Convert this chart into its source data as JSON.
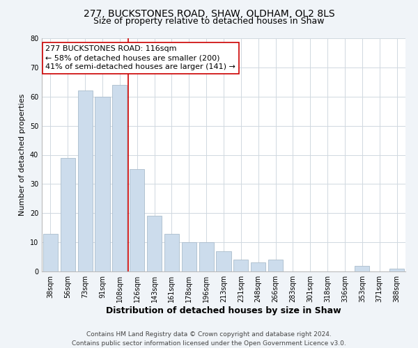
{
  "title": "277, BUCKSTONES ROAD, SHAW, OLDHAM, OL2 8LS",
  "subtitle": "Size of property relative to detached houses in Shaw",
  "xlabel": "Distribution of detached houses by size in Shaw",
  "ylabel": "Number of detached properties",
  "categories": [
    "38sqm",
    "56sqm",
    "73sqm",
    "91sqm",
    "108sqm",
    "126sqm",
    "143sqm",
    "161sqm",
    "178sqm",
    "196sqm",
    "213sqm",
    "231sqm",
    "248sqm",
    "266sqm",
    "283sqm",
    "301sqm",
    "318sqm",
    "336sqm",
    "353sqm",
    "371sqm",
    "388sqm"
  ],
  "values": [
    13,
    39,
    62,
    60,
    64,
    35,
    19,
    13,
    10,
    10,
    7,
    4,
    3,
    4,
    0,
    0,
    0,
    0,
    2,
    0,
    1
  ],
  "bar_color": "#ccdcec",
  "bar_edgecolor": "#aabccc",
  "vline_color": "#cc0000",
  "vline_x": 4.5,
  "annotation_line1": "277 BUCKSTONES ROAD: 116sqm",
  "annotation_line2": "← 58% of detached houses are smaller (200)",
  "annotation_line3": "41% of semi-detached houses are larger (141) →",
  "annotation_box_facecolor": "#ffffff",
  "annotation_box_edgecolor": "#cc0000",
  "ylim": [
    0,
    80
  ],
  "yticks": [
    0,
    10,
    20,
    30,
    40,
    50,
    60,
    70,
    80
  ],
  "footer_line1": "Contains HM Land Registry data © Crown copyright and database right 2024.",
  "footer_line2": "Contains public sector information licensed under the Open Government Licence v3.0.",
  "background_color": "#f0f4f8",
  "plot_background_color": "#ffffff",
  "grid_color": "#d0d8e0",
  "title_fontsize": 10,
  "subtitle_fontsize": 9,
  "xlabel_fontsize": 9,
  "ylabel_fontsize": 8,
  "tick_fontsize": 7,
  "annotation_fontsize": 8,
  "footer_fontsize": 6.5
}
